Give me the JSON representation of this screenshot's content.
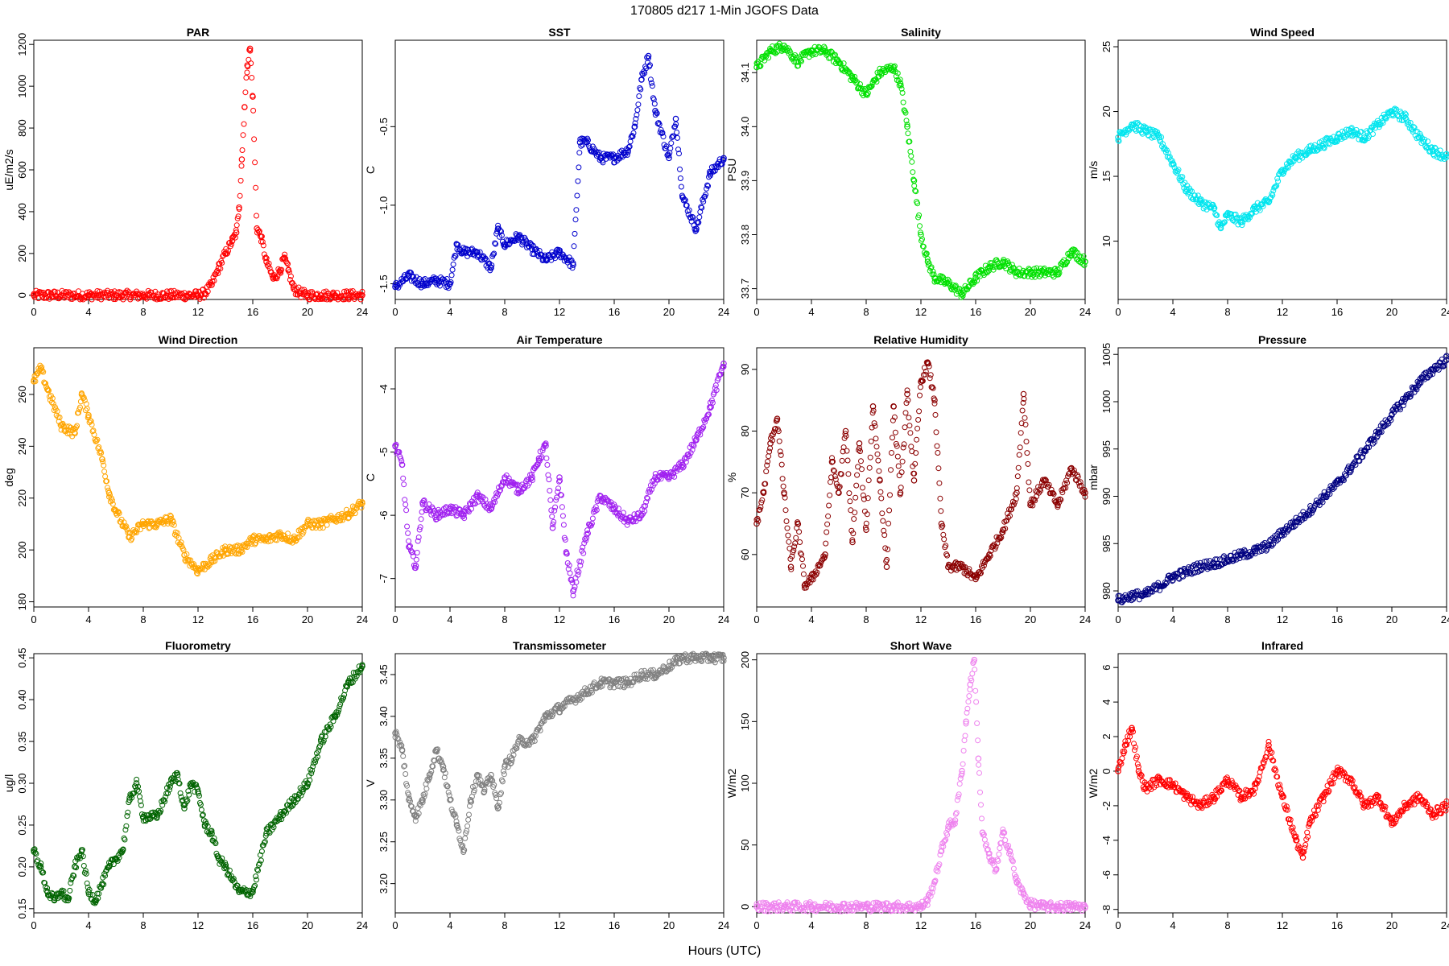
{
  "figure": {
    "title": "170805   d217   1-Min  JGOFS Data",
    "xlabel": "Hours (UTC)"
  },
  "chart_data": [
    {
      "type": "scatter",
      "title": "PAR",
      "ylabel": "uE/m2/s",
      "color": "#ff0000",
      "xlim": [
        0,
        24
      ],
      "ylim": [
        -20,
        1220
      ],
      "xticks": [
        0,
        4,
        8,
        12,
        16,
        20,
        24
      ],
      "yticks": [
        0,
        200,
        400,
        600,
        800,
        1000,
        1200
      ],
      "x": [
        0,
        2,
        4,
        6,
        8,
        10,
        12,
        12.5,
        13,
        13.5,
        14,
        14.5,
        14.8,
        15,
        15.2,
        15.4,
        15.6,
        15.8,
        16,
        16.3,
        16.6,
        17,
        17.5,
        18,
        18.3,
        18.6,
        19,
        19.5,
        20,
        21,
        22,
        23,
        24
      ],
      "y": [
        0,
        0,
        0,
        0,
        0,
        0,
        0,
        10,
        50,
        130,
        200,
        260,
        300,
        420,
        650,
        900,
        1100,
        1180,
        950,
        320,
        280,
        160,
        80,
        120,
        180,
        120,
        30,
        10,
        0,
        0,
        0,
        0,
        0
      ]
    },
    {
      "type": "scatter",
      "title": "SST",
      "ylabel": "C",
      "color": "#0000cd",
      "xlim": [
        0,
        24
      ],
      "ylim": [
        -1.6,
        0.05
      ],
      "xticks": [
        0,
        4,
        8,
        12,
        16,
        20,
        24
      ],
      "yticks": [
        -1.5,
        -1.0,
        -0.5
      ],
      "ytick_labels": [
        "-1.5",
        "-1.0",
        "-0.5"
      ],
      "x": [
        0,
        1,
        2,
        3,
        4,
        4.5,
        5,
        6,
        7,
        7.5,
        8,
        9,
        10,
        11,
        12,
        13,
        13.5,
        14,
        15,
        16,
        17,
        17.5,
        18,
        18.5,
        19,
        20,
        20.5,
        21,
        22,
        23,
        24
      ],
      "y": [
        -1.52,
        -1.45,
        -1.5,
        -1.48,
        -1.5,
        -1.25,
        -1.3,
        -1.3,
        -1.4,
        -1.15,
        -1.25,
        -1.2,
        -1.28,
        -1.35,
        -1.3,
        -1.38,
        -0.6,
        -0.6,
        -0.7,
        -0.7,
        -0.65,
        -0.5,
        -0.2,
        -0.05,
        -0.4,
        -0.7,
        -0.45,
        -0.95,
        -1.15,
        -0.8,
        -0.7
      ]
    },
    {
      "type": "scatter",
      "title": "Salinity",
      "ylabel": "PSU",
      "color": "#00e000",
      "xlim": [
        0,
        24
      ],
      "ylim": [
        33.68,
        34.16
      ],
      "xticks": [
        0,
        4,
        8,
        12,
        16,
        20,
        24
      ],
      "yticks": [
        33.7,
        33.8,
        33.9,
        34.0,
        34.1
      ],
      "ytick_labels": [
        "33.7",
        "33.8",
        "33.9",
        "34.0",
        "34.1"
      ],
      "x": [
        0,
        1,
        2,
        3,
        4,
        5,
        6,
        7,
        8,
        9,
        10,
        10.5,
        11,
        11.5,
        12,
        12.5,
        13,
        14,
        15,
        16,
        17,
        18,
        19,
        20,
        21,
        22,
        23,
        24
      ],
      "y": [
        34.11,
        34.14,
        34.15,
        34.12,
        34.14,
        34.14,
        34.12,
        34.09,
        34.06,
        34.1,
        34.11,
        34.08,
        34.0,
        33.9,
        33.8,
        33.75,
        33.72,
        33.71,
        33.69,
        33.72,
        33.74,
        33.75,
        33.73,
        33.73,
        33.73,
        33.73,
        33.77,
        33.75
      ]
    },
    {
      "type": "scatter",
      "title": "Wind Speed",
      "ylabel": "m/s",
      "color": "#00e5ee",
      "xlim": [
        0,
        24
      ],
      "ylim": [
        5.5,
        25.5
      ],
      "xticks": [
        0,
        4,
        8,
        12,
        16,
        20,
        24
      ],
      "yticks": [
        10,
        15,
        20,
        25
      ],
      "x": [
        0,
        1,
        2,
        3,
        4,
        5,
        6,
        7,
        7.5,
        8,
        9,
        10,
        11,
        12,
        13,
        14,
        15,
        16,
        17,
        18,
        19,
        20,
        21,
        22,
        23,
        24
      ],
      "y": [
        18,
        19,
        18.5,
        18,
        16,
        14,
        13,
        12.5,
        11,
        12,
        11.5,
        12.5,
        13,
        15.5,
        16.5,
        17,
        17.5,
        18,
        18.5,
        18,
        19,
        20,
        19.5,
        18,
        17,
        16.5
      ]
    },
    {
      "type": "scatter",
      "title": "Wind Direction",
      "ylabel": "deg",
      "color": "#ffa500",
      "xlim": [
        0,
        24
      ],
      "ylim": [
        178,
        278
      ],
      "xticks": [
        0,
        4,
        8,
        12,
        16,
        20,
        24
      ],
      "yticks": [
        180,
        200,
        220,
        240,
        260
      ],
      "x": [
        0,
        0.5,
        1,
        2,
        3,
        3.5,
        4,
        5,
        5.5,
        6,
        7,
        8,
        9,
        10,
        11,
        12,
        13,
        14,
        15,
        16,
        17,
        18,
        19,
        20,
        21,
        22,
        23,
        24
      ],
      "y": [
        265,
        270,
        262,
        248,
        245,
        260,
        252,
        235,
        222,
        215,
        205,
        210,
        210,
        212,
        198,
        192,
        196,
        200,
        200,
        204,
        204,
        206,
        204,
        210,
        210,
        212,
        214,
        218
      ]
    },
    {
      "type": "scatter",
      "title": "Air Temperature",
      "ylabel": "C",
      "color": "#a020f0",
      "xlim": [
        0,
        24
      ],
      "ylim": [
        -7.45,
        -3.35
      ],
      "xticks": [
        0,
        4,
        8,
        12,
        16,
        20,
        24
      ],
      "yticks": [
        -7,
        -6,
        -5,
        -4
      ],
      "x": [
        0,
        0.5,
        1,
        1.5,
        2,
        3,
        4,
        5,
        6,
        7,
        8,
        9,
        10,
        10.5,
        11,
        11.5,
        12,
        12.5,
        13,
        14,
        15,
        16,
        17,
        18,
        19,
        20,
        21,
        22,
        23,
        24
      ],
      "y": [
        -4.9,
        -5.2,
        -6.5,
        -6.8,
        -5.8,
        -6,
        -5.9,
        -6,
        -5.7,
        -5.9,
        -5.4,
        -5.6,
        -5.4,
        -5.1,
        -4.9,
        -6.2,
        -5.4,
        -6.6,
        -7.2,
        -6.3,
        -5.7,
        -5.9,
        -6.1,
        -6.0,
        -5.4,
        -5.4,
        -5.2,
        -4.8,
        -4.3,
        -3.6
      ]
    },
    {
      "type": "scatter",
      "title": "Relative Humidity",
      "ylabel": "%",
      "color": "#8b0000",
      "xlim": [
        0,
        24
      ],
      "ylim": [
        51.5,
        93.5
      ],
      "xticks": [
        0,
        4,
        8,
        12,
        16,
        20,
        24
      ],
      "yticks": [
        60,
        70,
        80,
        90
      ],
      "x": [
        0,
        0.5,
        1,
        1.5,
        2,
        2.5,
        3,
        3.5,
        4,
        5,
        5.5,
        6,
        6.5,
        7,
        7.5,
        8,
        8.5,
        9,
        9.5,
        10,
        10.5,
        11,
        11.5,
        12,
        12.5,
        13,
        13.5,
        14,
        15,
        16,
        17,
        18,
        19,
        19.5,
        20,
        21,
        22,
        23,
        24
      ],
      "y": [
        65,
        70,
        78,
        82,
        70,
        58,
        65,
        55,
        56,
        60,
        75,
        70,
        80,
        62,
        78,
        64,
        84,
        72,
        58,
        84,
        70,
        86,
        72,
        88,
        91,
        85,
        65,
        58,
        58,
        56,
        60,
        64,
        70,
        86,
        68,
        72,
        68,
        74,
        70
      ]
    },
    {
      "type": "scatter",
      "title": "Pressure",
      "ylabel": "mbar",
      "color": "#000080",
      "xlim": [
        0,
        24
      ],
      "ylim": [
        978.3,
        1005.7
      ],
      "xticks": [
        0,
        4,
        8,
        12,
        16,
        20,
        24
      ],
      "yticks": [
        980,
        985,
        990,
        995,
        1000,
        1005
      ],
      "x": [
        0,
        1,
        2,
        3,
        4,
        5,
        6,
        7,
        8,
        9,
        10,
        11,
        12,
        13,
        14,
        15,
        16,
        17,
        18,
        19,
        20,
        21,
        22,
        23,
        24
      ],
      "y": [
        979,
        979.5,
        979.6,
        980.5,
        981.5,
        982,
        982.6,
        982.9,
        983.3,
        983.8,
        984.2,
        984.8,
        986.2,
        987.3,
        988.5,
        989.9,
        991.3,
        993,
        994.8,
        996.7,
        998.6,
        1000.3,
        1002,
        1003.4,
        1004.4
      ]
    },
    {
      "type": "scatter",
      "title": "Fluorometry",
      "ylabel": "ug/l",
      "color": "#006400",
      "xlim": [
        0,
        24
      ],
      "ylim": [
        0.145,
        0.455
      ],
      "xticks": [
        0,
        4,
        8,
        12,
        16,
        20,
        24
      ],
      "yticks": [
        0.15,
        0.2,
        0.25,
        0.3,
        0.35,
        0.4,
        0.45
      ],
      "ytick_labels": [
        "0.15",
        "0.20",
        "0.25",
        "0.30",
        "0.35",
        "0.40",
        "0.45"
      ],
      "x": [
        0,
        0.5,
        1,
        1.5,
        2,
        2.5,
        3,
        3.5,
        4,
        4.5,
        5,
        5.5,
        6,
        6.5,
        7,
        7.5,
        8,
        9,
        10,
        10.5,
        11,
        11.5,
        12,
        12.5,
        13,
        13.5,
        14,
        15,
        16,
        17,
        18,
        19,
        20,
        21,
        22,
        23,
        24
      ],
      "y": [
        0.22,
        0.2,
        0.17,
        0.16,
        0.17,
        0.16,
        0.2,
        0.22,
        0.17,
        0.16,
        0.18,
        0.2,
        0.21,
        0.22,
        0.28,
        0.3,
        0.26,
        0.26,
        0.3,
        0.31,
        0.27,
        0.3,
        0.29,
        0.25,
        0.24,
        0.21,
        0.2,
        0.17,
        0.17,
        0.24,
        0.26,
        0.28,
        0.3,
        0.35,
        0.38,
        0.42,
        0.44
      ]
    },
    {
      "type": "scatter",
      "title": "Transmissometer",
      "ylabel": "V",
      "color": "#808080",
      "xlim": [
        0,
        24
      ],
      "ylim": [
        3.165,
        3.475
      ],
      "xticks": [
        0,
        4,
        8,
        12,
        16,
        20,
        24
      ],
      "yticks": [
        3.2,
        3.25,
        3.3,
        3.35,
        3.4,
        3.45
      ],
      "ytick_labels": [
        "3.20",
        "3.25",
        "3.30",
        "3.35",
        "3.40",
        "3.45"
      ],
      "x": [
        0,
        0.5,
        1,
        1.5,
        2,
        2.5,
        3,
        3.5,
        4,
        4.5,
        5,
        5.5,
        6,
        6.5,
        7,
        7.5,
        8,
        8.5,
        9,
        10,
        11,
        12,
        13,
        14,
        15,
        16,
        17,
        18,
        19,
        20,
        21,
        22,
        23,
        24
      ],
      "y": [
        3.38,
        3.36,
        3.3,
        3.28,
        3.3,
        3.33,
        3.36,
        3.34,
        3.3,
        3.27,
        3.24,
        3.3,
        3.33,
        3.31,
        3.33,
        3.29,
        3.34,
        3.35,
        3.37,
        3.37,
        3.4,
        3.41,
        3.42,
        3.43,
        3.44,
        3.44,
        3.44,
        3.45,
        3.45,
        3.46,
        3.47,
        3.47,
        3.47,
        3.47
      ]
    },
    {
      "type": "scatter",
      "title": "Short Wave",
      "ylabel": "W/m2",
      "color": "#ee82ee",
      "xlim": [
        0,
        24
      ],
      "ylim": [
        -5,
        205
      ],
      "xticks": [
        0,
        4,
        8,
        12,
        16,
        20,
        24
      ],
      "yticks": [
        0,
        50,
        100,
        150,
        200
      ],
      "x": [
        0,
        2,
        4,
        6,
        8,
        10,
        12,
        12.5,
        13,
        13.5,
        14,
        14.5,
        15,
        15.3,
        15.6,
        15.9,
        16.2,
        16.5,
        17,
        17.5,
        18,
        18.5,
        19,
        19.5,
        20,
        21,
        22,
        23,
        24
      ],
      "y": [
        0,
        0,
        0,
        0,
        0,
        0,
        0,
        5,
        20,
        45,
        65,
        70,
        110,
        150,
        180,
        200,
        120,
        60,
        40,
        30,
        60,
        45,
        20,
        10,
        2,
        0,
        0,
        0,
        0
      ]
    },
    {
      "type": "scatter",
      "title": "Infrared",
      "ylabel": "W/m2",
      "color": "#ff0000",
      "xlim": [
        0,
        24
      ],
      "ylim": [
        -8.2,
        6.8
      ],
      "xticks": [
        0,
        4,
        8,
        12,
        16,
        20,
        24
      ],
      "yticks": [
        -8,
        -6,
        -4,
        -2,
        0,
        2,
        4,
        6
      ],
      "x": [
        0,
        0.5,
        1,
        1.5,
        2,
        3,
        4,
        5,
        6,
        7,
        8,
        9,
        10,
        11,
        12,
        13,
        13.5,
        14,
        15,
        16,
        17,
        18,
        19,
        20,
        21,
        22,
        23,
        24
      ],
      "y": [
        0,
        1.5,
        2.5,
        0,
        -1,
        -0.5,
        -0.8,
        -1.5,
        -2,
        -1.5,
        -0.5,
        -1.5,
        -1,
        1.5,
        -1.5,
        -4,
        -5,
        -3,
        -1.5,
        0,
        -0.5,
        -2,
        -1.5,
        -3,
        -2,
        -1.5,
        -2.5,
        -2
      ]
    }
  ]
}
